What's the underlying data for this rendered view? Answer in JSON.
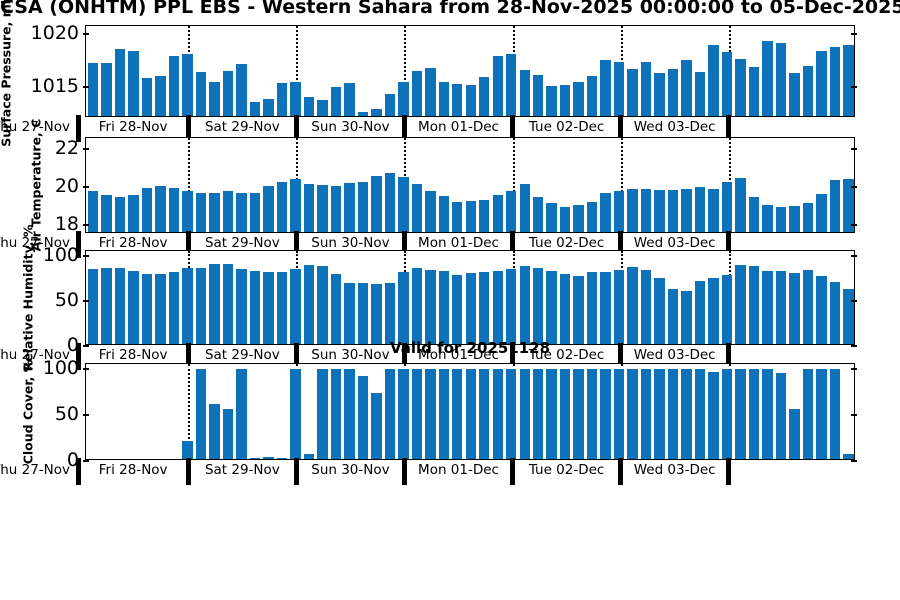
{
  "title": "CSA (ONHTM) PPL EBS  - Western Sahara from 28-Nov-2025 00:00:00 to 05-Dec-2025 00:00:00",
  "watermark": "Valid for 20251128",
  "colors": {
    "bar": "#0d72ba",
    "axis": "#000000",
    "background": "#ffffff"
  },
  "x_axis": {
    "day_labels": [
      "Thu 27-Nov",
      "Fri 28-Nov",
      "Sat 29-Nov",
      "Sun 30-Nov",
      "Mon 01-Dec",
      "Tue 02-Dec",
      "Wed 03-Dec"
    ],
    "bars_per_day": 8,
    "interval_hours": 3
  },
  "chart_data": [
    {
      "type": "bar",
      "name": "surface-pressure",
      "ylabel": "Surface Pressure, mb",
      "yticks": [
        1015,
        1020
      ],
      "ylim": [
        1012,
        1020.8
      ],
      "values": [
        1017.2,
        1017.2,
        1018.6,
        1018.4,
        1015.7,
        1015.9,
        1017.9,
        1018.1,
        1016.3,
        1015.3,
        1016.4,
        1017.1,
        1013.4,
        1013.7,
        1015.2,
        1015.3,
        1013.9,
        1013.6,
        1014.8,
        1015.2,
        1012.4,
        1012.7,
        1014.2,
        1015.3,
        1016.4,
        1016.7,
        1015.3,
        1015.1,
        1015.0,
        1015.8,
        1017.9,
        1018.1,
        1016.5,
        1016.0,
        1014.9,
        1015.0,
        1015.3,
        1015.9,
        1017.5,
        1017.3,
        1016.6,
        1017.3,
        1016.2,
        1016.6,
        1017.5,
        1016.3,
        1018.9,
        1018.3,
        1017.6,
        1016.8,
        1019.3,
        1019.1,
        1016.2,
        1016.9,
        1018.4,
        1018.7,
        1018.9
      ]
    },
    {
      "type": "bar",
      "name": "air-temperature",
      "ylabel": "Air Temperature, C",
      "yticks": [
        18,
        20,
        22
      ],
      "ylim": [
        17.5,
        22.6
      ],
      "values": [
        19.7,
        19.5,
        19.4,
        19.5,
        19.9,
        20.0,
        19.9,
        19.7,
        19.6,
        19.6,
        19.7,
        19.6,
        19.6,
        20.0,
        20.2,
        20.35,
        20.1,
        20.05,
        20.0,
        20.15,
        20.2,
        20.55,
        20.7,
        20.5,
        20.1,
        19.7,
        19.45,
        19.15,
        19.2,
        19.25,
        19.5,
        19.7,
        20.1,
        19.4,
        19.05,
        18.85,
        18.95,
        19.15,
        19.6,
        19.75,
        19.85,
        19.85,
        19.8,
        19.8,
        19.85,
        19.95,
        19.85,
        20.2,
        20.45,
        19.4,
        18.95,
        18.85,
        18.9,
        19.1,
        19.55,
        20.3,
        20.35
      ]
    },
    {
      "type": "bar",
      "name": "relative-humidity",
      "ylabel": "Relative Humidity, %",
      "yticks": [
        0,
        50,
        100
      ],
      "ylim": [
        0,
        105
      ],
      "values": [
        85,
        86,
        86,
        83,
        79,
        79,
        81,
        86,
        86,
        90,
        90,
        85,
        82,
        81,
        81,
        85,
        89,
        88,
        79,
        69,
        69,
        68,
        69,
        81,
        86,
        84,
        82,
        78,
        80,
        81,
        82,
        85,
        88,
        86,
        83,
        79,
        77,
        81,
        81,
        84,
        87,
        84,
        75,
        62,
        60,
        71,
        74,
        78,
        89,
        88,
        82,
        83,
        80,
        84,
        77,
        70,
        62
      ]
    },
    {
      "type": "bar",
      "name": "cloud-cover",
      "ylabel": "Cloud Cover, %",
      "yticks": [
        0,
        50,
        100
      ],
      "ylim": [
        0,
        105
      ],
      "values": [
        0,
        0,
        0,
        0,
        0,
        0,
        0,
        20,
        100,
        61,
        55,
        100,
        1,
        2,
        1,
        100,
        5,
        100,
        100,
        100,
        92,
        73,
        100,
        100,
        100,
        100,
        100,
        100,
        100,
        100,
        100,
        100,
        100,
        100,
        100,
        100,
        100,
        100,
        100,
        100,
        100,
        100,
        100,
        100,
        100,
        100,
        96,
        100,
        100,
        100,
        100,
        95,
        55,
        100,
        100,
        100,
        5
      ]
    }
  ]
}
